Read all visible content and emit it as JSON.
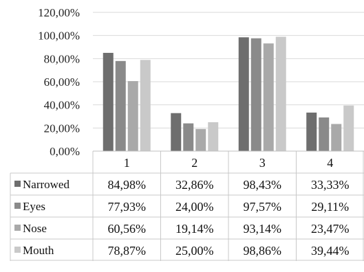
{
  "chart_data": {
    "type": "bar",
    "title": "",
    "xlabel": "",
    "ylabel": "",
    "ylim": [
      0,
      120
    ],
    "yticks": [
      "0,00%",
      "20,00%",
      "40,00%",
      "60,00%",
      "80,00%",
      "100,00%",
      "120,00%"
    ],
    "grid": true,
    "legend": "data-table",
    "categories": [
      "1",
      "2",
      "3",
      "4"
    ],
    "series": [
      {
        "name": "Narrowed",
        "color": "#6e6e6e",
        "values": [
          84.98,
          32.86,
          98.43,
          33.33
        ],
        "labels": [
          "84,98%",
          "32,86%",
          "98,43%",
          "33,33%"
        ]
      },
      {
        "name": "Eyes",
        "color": "#8a8a8a",
        "values": [
          77.93,
          24.0,
          97.57,
          29.11
        ],
        "labels": [
          "77,93%",
          "24,00%",
          "97,57%",
          "29,11%"
        ]
      },
      {
        "name": "Nose",
        "color": "#a9a9a9",
        "values": [
          60.56,
          19.14,
          93.14,
          23.47
        ],
        "labels": [
          "60,56%",
          "19,14%",
          "93,14%",
          "23,47%"
        ]
      },
      {
        "name": "Mouth",
        "color": "#c9c9c9",
        "values": [
          78.87,
          25.0,
          98.86,
          39.44
        ],
        "labels": [
          "78,87%",
          "25,00%",
          "98,86%",
          "39,44%"
        ]
      }
    ]
  }
}
